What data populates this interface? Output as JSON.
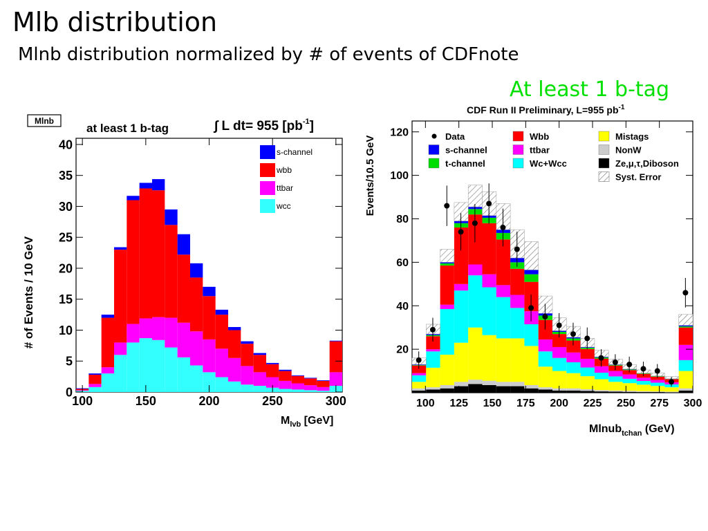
{
  "slide": {
    "title": "Mlb distribution",
    "subtitle": "Mlnb distribution normalized by # of events of CDFnote",
    "note": "At least 1 b-tag"
  },
  "chart_data": [
    {
      "type": "bar",
      "stacked": true,
      "tag": "Mlnb",
      "title": "at least 1 b-tag",
      "lumi_label": "∫ L dt= 955 [pb",
      "lumi_sup": "-1",
      "lumi_close": "]",
      "xlabel": "M",
      "xlabel_sub": "lvb",
      "xlabel_unit": " [GeV]",
      "ylabel": "# of Events / 10 GeV",
      "xlim": [
        95,
        305
      ],
      "ylim": [
        0,
        41
      ],
      "xticks": [
        100,
        150,
        200,
        250,
        300
      ],
      "yticks": [
        0,
        5,
        10,
        15,
        20,
        25,
        30,
        35,
        40
      ],
      "bin_edges": [
        95,
        105,
        115,
        125,
        135,
        145,
        155,
        165,
        175,
        185,
        195,
        205,
        215,
        225,
        235,
        245,
        255,
        265,
        275,
        285,
        295,
        305
      ],
      "series": [
        {
          "name": "wcc",
          "color": "#33ffff",
          "values": [
            0.2,
            0.8,
            3,
            6,
            8,
            8.7,
            8.4,
            7.2,
            5.6,
            4.3,
            3.2,
            2.4,
            1.7,
            1.2,
            1,
            0.7,
            0.5,
            0.4,
            0.3,
            0.2,
            1
          ]
        },
        {
          "name": "ttbar",
          "color": "#ff00ff",
          "values": [
            0.1,
            0.5,
            1,
            2,
            3,
            3.2,
            3.7,
            4.8,
            5.6,
            5.5,
            5.3,
            4.6,
            3.8,
            3,
            2.2,
            1.7,
            1.3,
            1,
            0.8,
            0.6,
            2.2
          ]
        },
        {
          "name": "wbb",
          "color": "#ff0000",
          "values": [
            0.2,
            1.5,
            8,
            15,
            20,
            21,
            20.5,
            15,
            11,
            8.7,
            7,
            5.5,
            4.5,
            3.6,
            2.8,
            2.1,
            1.6,
            1.2,
            1.1,
            1,
            5
          ]
        },
        {
          "name": "s-channel",
          "color": "#0000ff",
          "values": [
            0.1,
            0.2,
            0.5,
            0.4,
            0.7,
            0.9,
            1.8,
            2.5,
            3.3,
            2.3,
            1.5,
            0.8,
            0.5,
            0.4,
            0.3,
            0.2,
            0.2,
            0.1,
            0.1,
            0.1,
            0.1
          ]
        }
      ],
      "legend": [
        "s-channel",
        "wbb",
        "ttbar",
        "wcc"
      ]
    },
    {
      "type": "bar",
      "stacked": true,
      "title": "CDF Run II Preliminary, L=955 pb",
      "title_sup": "-1",
      "xlabel": "Mlnub",
      "xlabel_sub": "tchan",
      "xlabel_unit": " (GeV)",
      "ylabel": "Events/10.5 GeV",
      "xlim": [
        90,
        300
      ],
      "ylim": [
        0,
        125
      ],
      "xticks": [
        100,
        125,
        150,
        175,
        200,
        225,
        250,
        275,
        300
      ],
      "yticks": [
        20,
        40,
        60,
        80,
        100,
        120
      ],
      "bin_edges": [
        90,
        100.5,
        111,
        121.5,
        132,
        142.5,
        153,
        163.5,
        174,
        184.5,
        195,
        205.5,
        216,
        226.5,
        237,
        247.5,
        258,
        268.5,
        279,
        289.5,
        300
      ],
      "series": [
        {
          "name": "Ze,μ,τ,Diboson",
          "color": "#000000",
          "values": [
            1,
            1.5,
            2,
            3,
            4,
            3.5,
            3,
            3,
            2,
            1.5,
            1,
            1,
            0.8,
            0.6,
            0.5,
            0.4,
            0.3,
            0.3,
            0.2,
            1
          ]
        },
        {
          "name": "NonW",
          "color": "#cccccc",
          "values": [
            1,
            1,
            1.5,
            2,
            2,
            2,
            2,
            2,
            1.5,
            1,
            1,
            1,
            0.8,
            0.6,
            0.5,
            0.5,
            0.4,
            0.3,
            0.3,
            1
          ]
        },
        {
          "name": "Mistags",
          "color": "#ffff00",
          "values": [
            3,
            9,
            14,
            18,
            24,
            21,
            20,
            20,
            18,
            9.5,
            8,
            7,
            6,
            5,
            4,
            3.5,
            3,
            2.5,
            2,
            8
          ]
        },
        {
          "name": "Wc+Wcc",
          "color": "#00ffff",
          "values": [
            3,
            7.5,
            21,
            24,
            24,
            22,
            19,
            14,
            10,
            7,
            6,
            5,
            4,
            3,
            2.5,
            2,
            1.7,
            1.5,
            1.3,
            5
          ]
        },
        {
          "name": "ttbar",
          "color": "#ff00ff",
          "values": [
            1,
            1,
            2,
            3,
            5,
            6,
            5.5,
            6,
            6,
            5.5,
            5,
            4.5,
            4,
            3,
            2.5,
            2,
            1.5,
            1.3,
            1,
            7
          ]
        },
        {
          "name": "Wbb",
          "color": "#ff0000",
          "values": [
            3.5,
            6,
            18,
            26,
            23,
            23.5,
            21,
            12,
            13.5,
            9,
            6,
            5.5,
            4.5,
            3.5,
            2.5,
            2,
            1.8,
            1.5,
            1.4,
            8
          ]
        },
        {
          "name": "t-channel",
          "color": "#00dd00",
          "values": [
            0.2,
            0.5,
            1,
            2,
            2.5,
            2.5,
            3,
            3,
            3.5,
            2,
            1,
            1,
            0.6,
            0.5,
            0.3,
            0.3,
            0.2,
            0.2,
            0.1,
            0.5
          ]
        },
        {
          "name": "s-channel",
          "color": "#0000ff",
          "values": [
            0.3,
            0.5,
            0.5,
            1,
            1,
            1,
            1.5,
            2,
            2,
            1,
            0.5,
            0.5,
            0.3,
            0.3,
            0.2,
            0.2,
            0.1,
            0.1,
            0.1,
            0.5
          ]
        }
      ],
      "syst_error": [
        3,
        4.5,
        6,
        8.5,
        10,
        11,
        12,
        13,
        13,
        8,
        6,
        5,
        4,
        3,
        2.5,
        2,
        1.5,
        1.3,
        1,
        5
      ],
      "data_points": {
        "x": [
          95,
          105.5,
          116,
          126.5,
          137,
          147.5,
          158,
          168.5,
          179,
          189.5,
          200,
          210.5,
          221,
          231.5,
          242,
          252.5,
          263,
          273.5,
          284,
          294.5
        ],
        "y": [
          15,
          29,
          86,
          74,
          78,
          87,
          76,
          66,
          39,
          35,
          31,
          27,
          25,
          16,
          14,
          13,
          11,
          10,
          5,
          46
        ],
        "err": [
          4,
          5.5,
          9.3,
          8.6,
          8.8,
          9.3,
          8.7,
          8.1,
          6.2,
          5.9,
          5.6,
          5.2,
          5,
          4,
          3.7,
          3.6,
          3.3,
          3.2,
          2.2,
          6.8
        ]
      },
      "legend": [
        {
          "label": "Data",
          "kind": "marker",
          "color": "#000000"
        },
        {
          "label": "s-channel",
          "kind": "box",
          "color": "#0000ff"
        },
        {
          "label": "t-channel",
          "kind": "box",
          "color": "#00dd00"
        },
        {
          "label": "Wbb",
          "kind": "box",
          "color": "#ff0000"
        },
        {
          "label": "ttbar",
          "kind": "box",
          "color": "#ff00ff"
        },
        {
          "label": "Wc+Wcc",
          "kind": "box",
          "color": "#00ffff"
        },
        {
          "label": "Mistags",
          "kind": "box",
          "color": "#ffff00"
        },
        {
          "label": "NonW",
          "kind": "box",
          "color": "#cccccc"
        },
        {
          "label": "Ze,μ,τ,Diboson",
          "kind": "box",
          "color": "#000000"
        },
        {
          "label": "Syst. Error",
          "kind": "hatch",
          "color": "#888888"
        }
      ]
    }
  ]
}
